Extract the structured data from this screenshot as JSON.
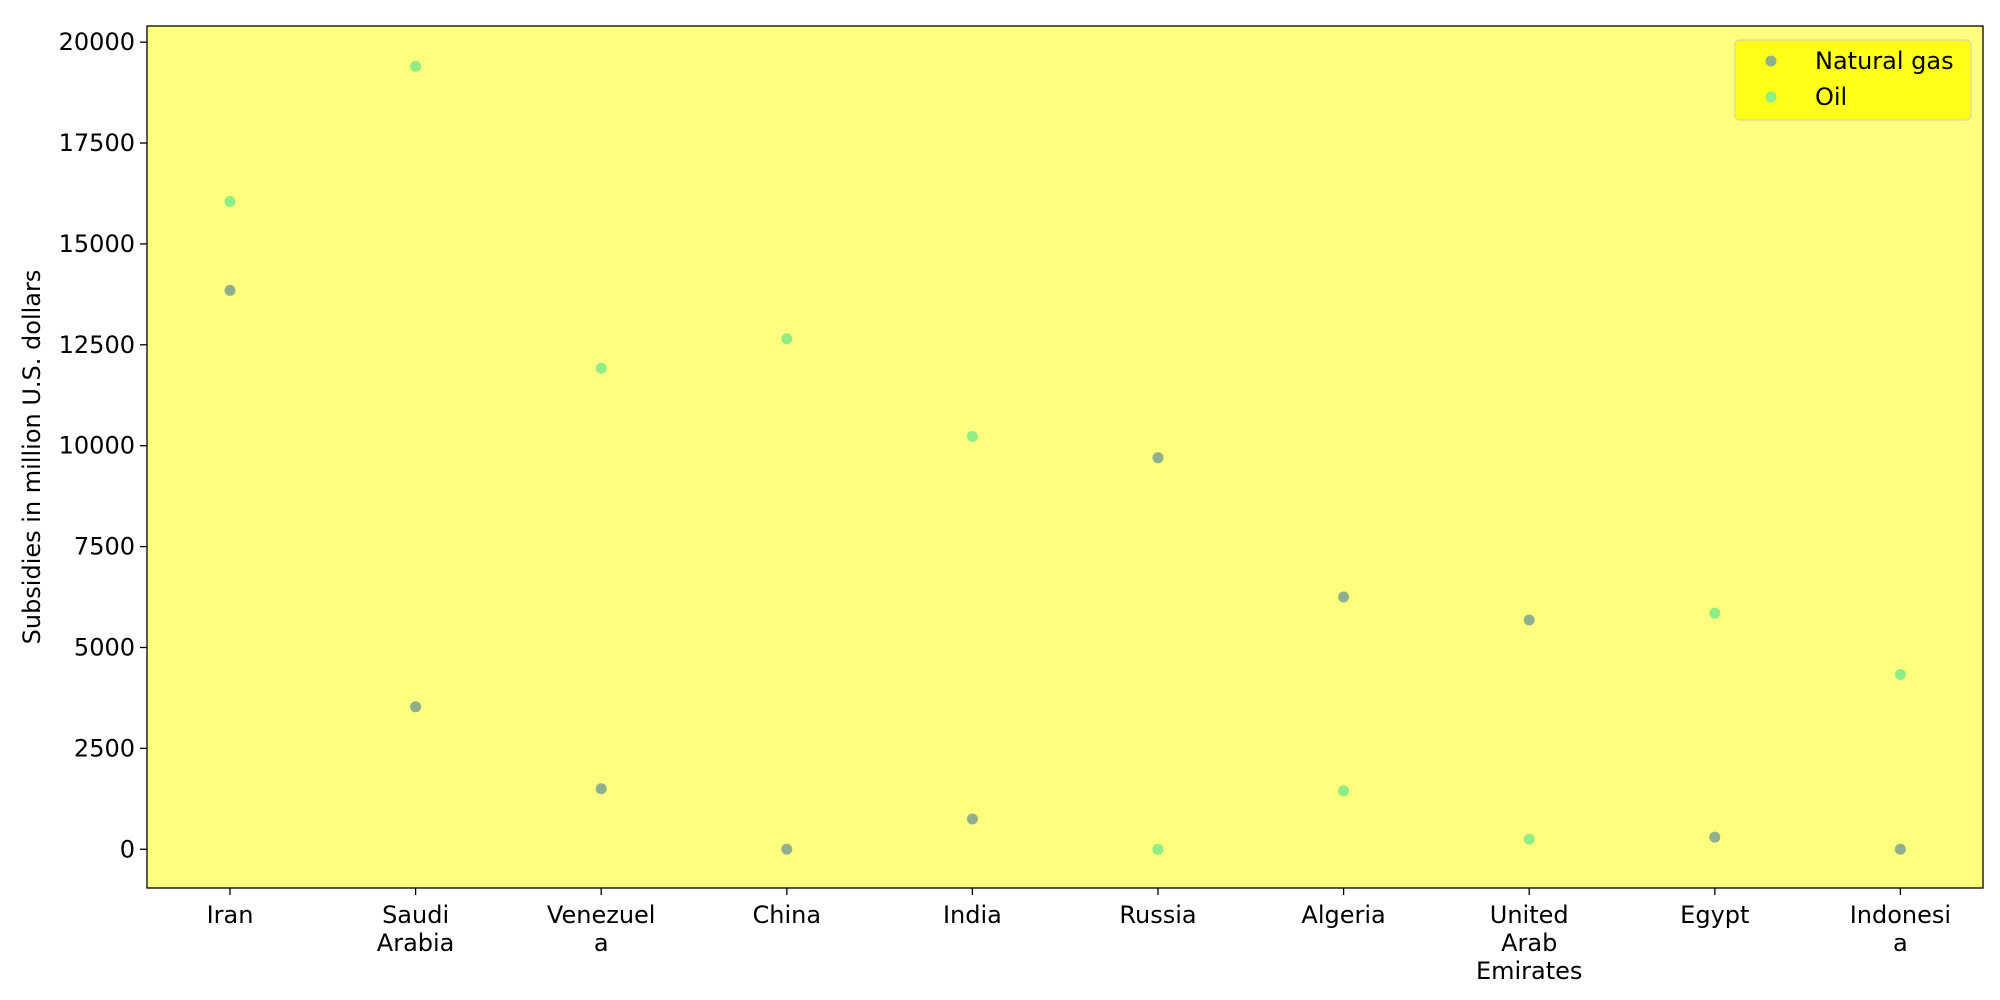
{
  "chart_data": {
    "type": "scatter",
    "title": "",
    "xlabel": "",
    "ylabel": "Subsidies in million U.S. dollars",
    "categories": [
      [
        "Iran"
      ],
      [
        "Saudi",
        "Arabia"
      ],
      [
        "Venezuel",
        "a"
      ],
      [
        "China"
      ],
      [
        "India"
      ],
      [
        "Russia"
      ],
      [
        "Algeria"
      ],
      [
        "United",
        "Arab",
        "Emirates"
      ],
      [
        "Egypt"
      ],
      [
        "Indonesi",
        "a"
      ]
    ],
    "series": [
      {
        "name": "Natural gas",
        "color": "#8fb08c",
        "values": [
          13850,
          3530,
          1500,
          0,
          750,
          9700,
          6250,
          5680,
          300,
          0
        ]
      },
      {
        "name": "Oil",
        "color": "#8eed84",
        "values": [
          16050,
          19400,
          11920,
          12650,
          10230,
          0,
          1450,
          250,
          5850,
          4330
        ]
      }
    ],
    "ylim": [
      -960,
      20400
    ],
    "yticks": [
      0,
      2500,
      5000,
      7500,
      10000,
      12500,
      15000,
      17500,
      20000
    ],
    "grid": false,
    "legend_position": "top-right",
    "plot_background": "#ffff7f",
    "legend_background": "#ffff1a"
  }
}
